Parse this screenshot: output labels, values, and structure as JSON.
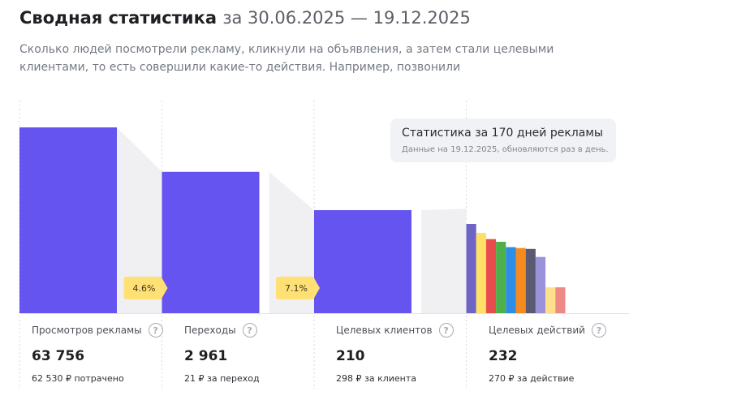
{
  "header": {
    "title": "Сводная статистика",
    "period": "за 30.06.2025 — 19.12.2025",
    "subtitle": "Сколько людей посмотрели рекламу, кликнули на объявления, а затем стали целевыми клиентами, то есть совершили какие-то действия. Например, позвонили"
  },
  "tooltip": {
    "title": "Статистика за 170 дней рекламы",
    "note": "Данные на 19.12.2025, обновляются раз в день."
  },
  "metrics": [
    {
      "label": "Просмотров рекламы",
      "value": "63 756",
      "sub": "62 530 ₽ потрачено"
    },
    {
      "label": "Переходы",
      "value": "2 961",
      "sub": "21 ₽ за переход"
    },
    {
      "label": "Целевых клиентов",
      "value": "210",
      "sub": "298 ₽ за клиента"
    },
    {
      "label": "Целевых действий",
      "value": "232",
      "sub": "270 ₽ за действие"
    }
  ],
  "help_glyph": "?",
  "chart_data": {
    "type": "bar",
    "categories": [
      "Просмотров рекламы",
      "Переходы",
      "Целевых клиентов",
      "Целевых действий"
    ],
    "values": [
      63756,
      2961,
      210,
      232
    ],
    "conversion_labels": [
      "4.6%",
      "7.1%"
    ],
    "bar_color": "#6654f1",
    "action_breakdown_colors": [
      "#6e64c4",
      "#ffe066",
      "#e84c4c",
      "#4db04a",
      "#2e8de6",
      "#f58b1f",
      "#5a5a72",
      "#9b93d9",
      "#ffe08a",
      "#ee8a86"
    ],
    "action_breakdown_heights": [
      1.0,
      0.9,
      0.83,
      0.8,
      0.74,
      0.73,
      0.72,
      0.63,
      0.29,
      0.29
    ],
    "funnel_fill": "#f0f0f3",
    "badge_color": "#ffe074"
  }
}
